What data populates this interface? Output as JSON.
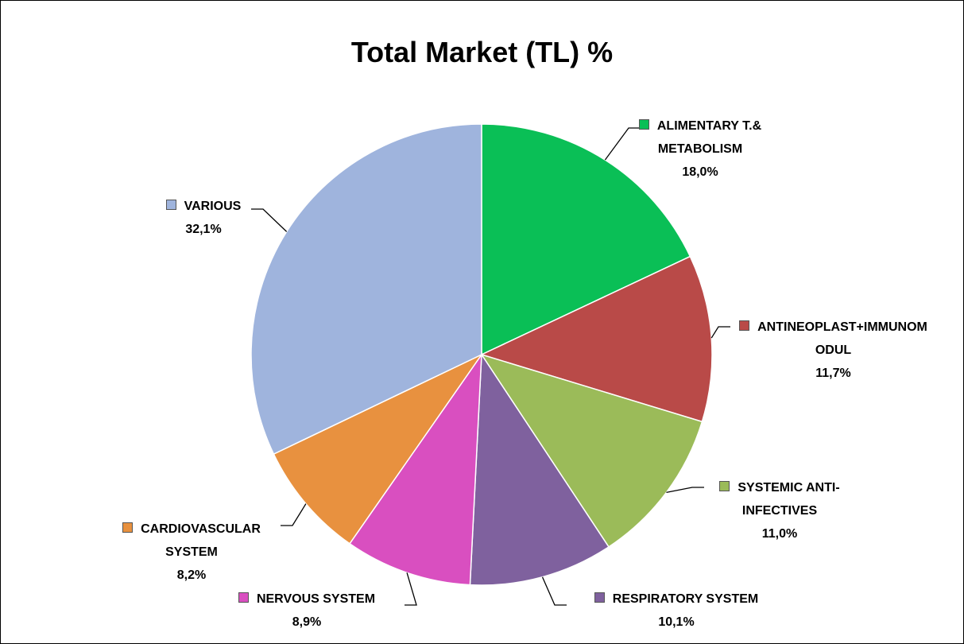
{
  "chart_data": {
    "type": "pie",
    "title": "Total Market (TL) %",
    "categories": [
      "ALIMENTARY T.& METABOLISM",
      "ANTINEOPLAST+IMMUNOMODUL",
      "SYSTEMIC ANTI-INFECTIVES",
      "RESPIRATORY SYSTEM",
      "NERVOUS SYSTEM",
      "CARDIOVASCULAR SYSTEM",
      "VARIOUS"
    ],
    "values": [
      18.0,
      11.7,
      11.0,
      10.1,
      8.9,
      8.2,
      32.1
    ],
    "value_labels": [
      "18,0%",
      "11,7%",
      "11,0%",
      "10,1%",
      "8,9%",
      "8,2%",
      "32,1%"
    ],
    "colors": [
      "#0abf56",
      "#b94a48",
      "#9bbb59",
      "#7f619e",
      "#d94fc0",
      "#e8913f",
      "#9fb4dd"
    ]
  }
}
